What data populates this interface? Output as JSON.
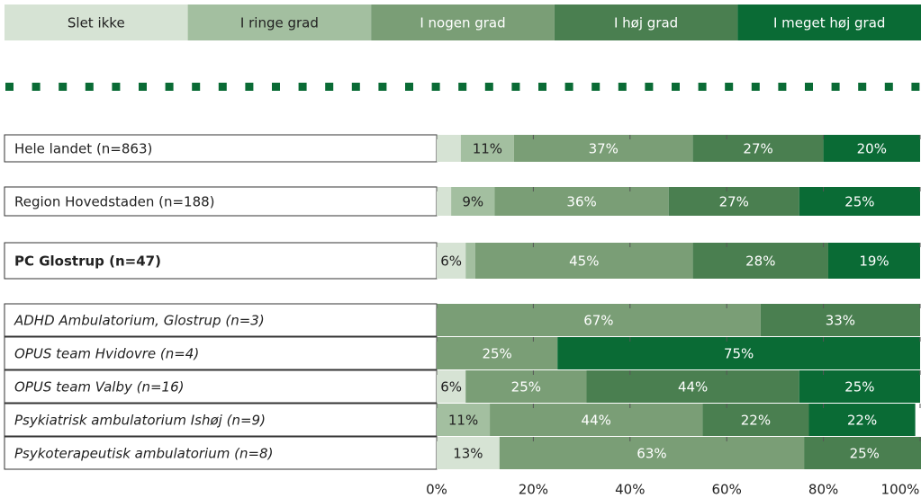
{
  "chart_data": {
    "type": "stacked-bar-horizontal",
    "categories": [
      "Hele landet (n=863)",
      "Region Hovedstaden (n=188)",
      "PC Glostrup (n=47)",
      "ADHD Ambulatorium, Glostrup (n=3)",
      "OPUS team Hvidovre (n=4)",
      "OPUS team Valby (n=16)",
      "Psykiatrisk ambulatorium Ishøj (n=9)",
      "Psykoterapeutisk ambulatorium (n=8)"
    ],
    "series": [
      {
        "name": "Slet ikke",
        "color": "#d6e3d4",
        "values": [
          5,
          3,
          6,
          0,
          0,
          6,
          0,
          13
        ],
        "value_labels": [
          null,
          null,
          "6%",
          null,
          null,
          "6%",
          null,
          "13%"
        ]
      },
      {
        "name": "I ringe grad",
        "color": "#a3bfa0",
        "values": [
          11,
          9,
          2,
          0,
          0,
          0,
          11,
          0
        ],
        "value_labels": [
          "11%",
          "9%",
          null,
          null,
          null,
          null,
          "11%",
          null
        ]
      },
      {
        "name": "I nogen grad",
        "color": "#7a9e76",
        "values": [
          37,
          36,
          45,
          67,
          25,
          25,
          44,
          63
        ],
        "value_labels": [
          "37%",
          "36%",
          "45%",
          "67%",
          "25%",
          "25%",
          "44%",
          "63%"
        ]
      },
      {
        "name": "I høj grad",
        "color": "#4a7f50",
        "values": [
          27,
          27,
          28,
          33,
          0,
          44,
          22,
          25
        ],
        "value_labels": [
          "27%",
          "27%",
          "28%",
          "33%",
          null,
          "44%",
          "22%",
          "25%"
        ]
      },
      {
        "name": "I meget høj grad",
        "color": "#0a6b35",
        "values": [
          20,
          25,
          19,
          0,
          75,
          25,
          22,
          0
        ],
        "value_labels": [
          "20%",
          "25%",
          "19%",
          null,
          "75%",
          "25%",
          "22%",
          null
        ]
      }
    ],
    "xlim": [
      0,
      100
    ],
    "xticks": [
      {
        "value": 0,
        "label": "0%"
      },
      {
        "value": 20,
        "label": "20%"
      },
      {
        "value": 40,
        "label": "40%"
      },
      {
        "value": 60,
        "label": "60%"
      },
      {
        "value": 80,
        "label": "80%"
      },
      {
        "value": 100,
        "label": "100%"
      }
    ],
    "legend": "top"
  }
}
